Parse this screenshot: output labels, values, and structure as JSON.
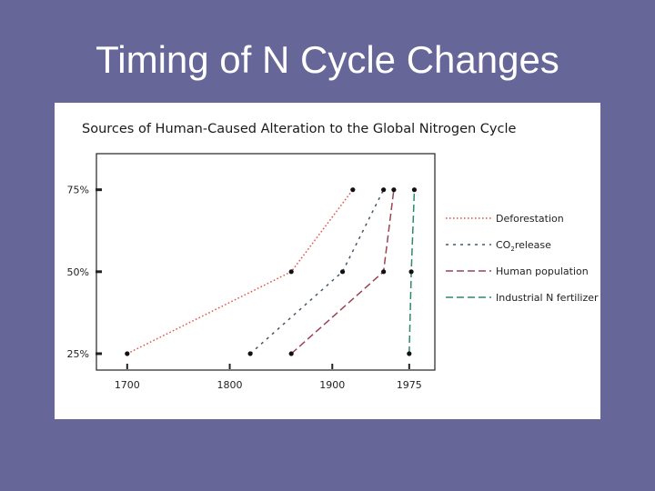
{
  "slide": {
    "title": "Timing of N Cycle Changes",
    "background": "#666699"
  },
  "chart_data": {
    "type": "line",
    "title": "Sources of Human-Caused Alteration to the Global Nitrogen Cycle",
    "xlabel": "",
    "ylabel": "",
    "x_ticks": [
      1700,
      1800,
      1900,
      1975
    ],
    "y_ticks": [
      "25%",
      "50%",
      "75%"
    ],
    "xlim": [
      1670,
      2000
    ],
    "ylim": [
      0.2,
      0.86
    ],
    "grid": false,
    "legend_position": "right",
    "series": [
      {
        "name": "Deforestation",
        "style": "dotted",
        "color": "#e0584c",
        "points": [
          [
            1700,
            0.25
          ],
          [
            1860,
            0.5
          ],
          [
            1920,
            0.75
          ]
        ]
      },
      {
        "name": "CO2 release",
        "legend_main": "CO",
        "legend_sub": "2",
        "legend_rest": "release",
        "style": "dashed-short",
        "color": "#445566",
        "points": [
          [
            1820,
            0.25
          ],
          [
            1910,
            0.5
          ],
          [
            1950,
            0.75
          ]
        ]
      },
      {
        "name": "Human population",
        "style": "dashed-long",
        "color": "#994455",
        "points": [
          [
            1860,
            0.25
          ],
          [
            1950,
            0.5
          ],
          [
            1960,
            0.75
          ]
        ]
      },
      {
        "name": "Industrial N fertilizer",
        "style": "dashed-long",
        "color": "#2d8a6a",
        "points": [
          [
            1975,
            0.25
          ],
          [
            1977,
            0.5
          ],
          [
            1980,
            0.75
          ]
        ]
      }
    ]
  }
}
